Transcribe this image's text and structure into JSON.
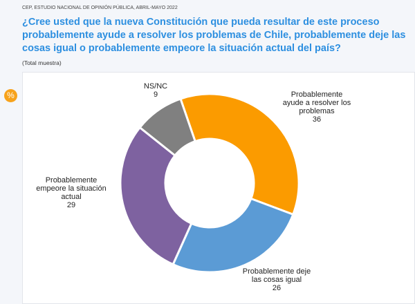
{
  "source": "CEP, ESTUDIO NACIONAL DE OPINIÓN PÚBLICA, ABRIL-MAYO 2022",
  "title": "¿Cree usted que la nueva Constitución que pueda resultar de este proceso probablemente ayude a resolver los problemas de Chile, probablemente deje las cosas igual o probablemente empeore la situación actual del país?",
  "subtitle": "(Total muestra)",
  "badge": "%",
  "chart_data": {
    "type": "pie",
    "donut": true,
    "title": "",
    "slices": [
      {
        "label": "Probablemente ayude a resolver los problemas",
        "lines": [
          "Probablemente",
          "ayude a resolver los",
          "problemas"
        ],
        "value": 36,
        "color": "#fb9b00"
      },
      {
        "label": "Probablemente deje las cosas igual",
        "lines": [
          "Probablemente deje",
          "las cosas igual"
        ],
        "value": 26,
        "color": "#5b9bd5"
      },
      {
        "label": "Probablemente empeore la situación actual",
        "lines": [
          "Probablemente",
          "empeore la situación",
          "actual"
        ],
        "value": 29,
        "color": "#7e62a0"
      },
      {
        "label": "NS/NC",
        "lines": [
          "NS/NC"
        ],
        "value": 9,
        "color": "#808080"
      }
    ]
  }
}
